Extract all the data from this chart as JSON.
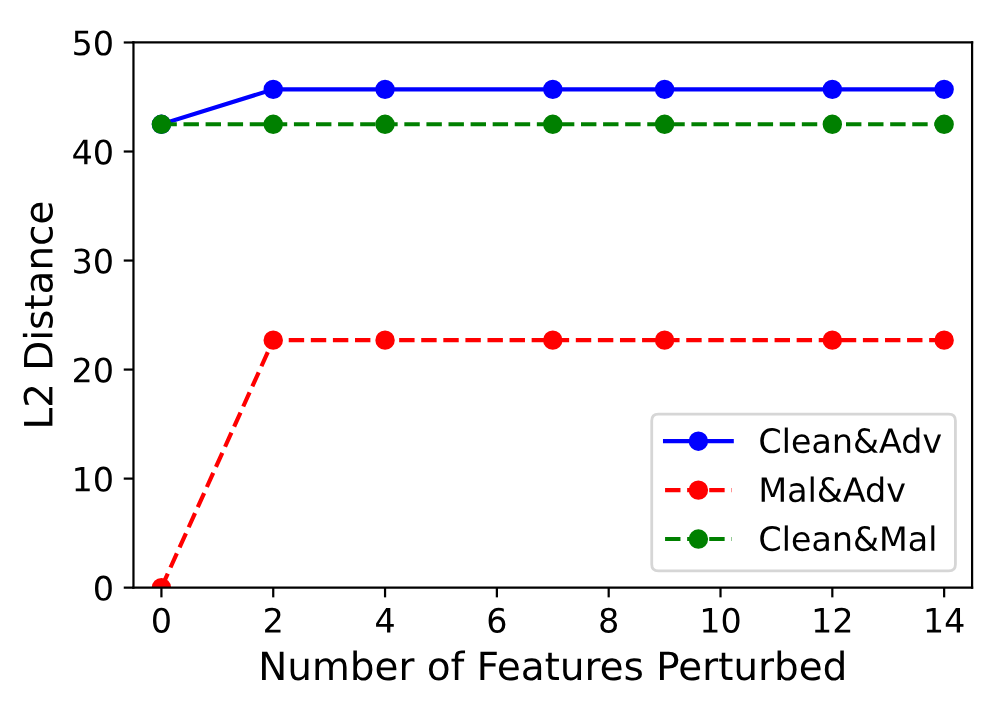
{
  "chart_data": {
    "type": "line",
    "xlabel": "Number of Features Perturbed",
    "ylabel": "L2 Distance",
    "x": [
      0,
      2,
      4,
      7,
      9,
      12,
      14
    ],
    "series": [
      {
        "name": "Clean&Adv",
        "color": "#0000ff",
        "line_style": "solid",
        "values": [
          42.5,
          45.7,
          45.7,
          45.7,
          45.7,
          45.7,
          45.7
        ]
      },
      {
        "name": "Mal&Adv",
        "color": "#ff0000",
        "line_style": "dashed",
        "values": [
          0,
          22.7,
          22.7,
          22.7,
          22.7,
          22.7,
          22.7
        ]
      },
      {
        "name": "Clean&Mal",
        "color": "#008000",
        "line_style": "dashed",
        "values": [
          42.5,
          42.5,
          42.5,
          42.5,
          42.5,
          42.5,
          42.5
        ]
      }
    ],
    "marker": "circle",
    "xlim": [
      -0.5,
      14.5
    ],
    "ylim": [
      0,
      50
    ],
    "xticks": [
      0,
      2,
      4,
      6,
      8,
      10,
      12,
      14
    ],
    "yticks": [
      0,
      10,
      20,
      30,
      40,
      50
    ],
    "legend": "bottom right",
    "grid": false
  }
}
